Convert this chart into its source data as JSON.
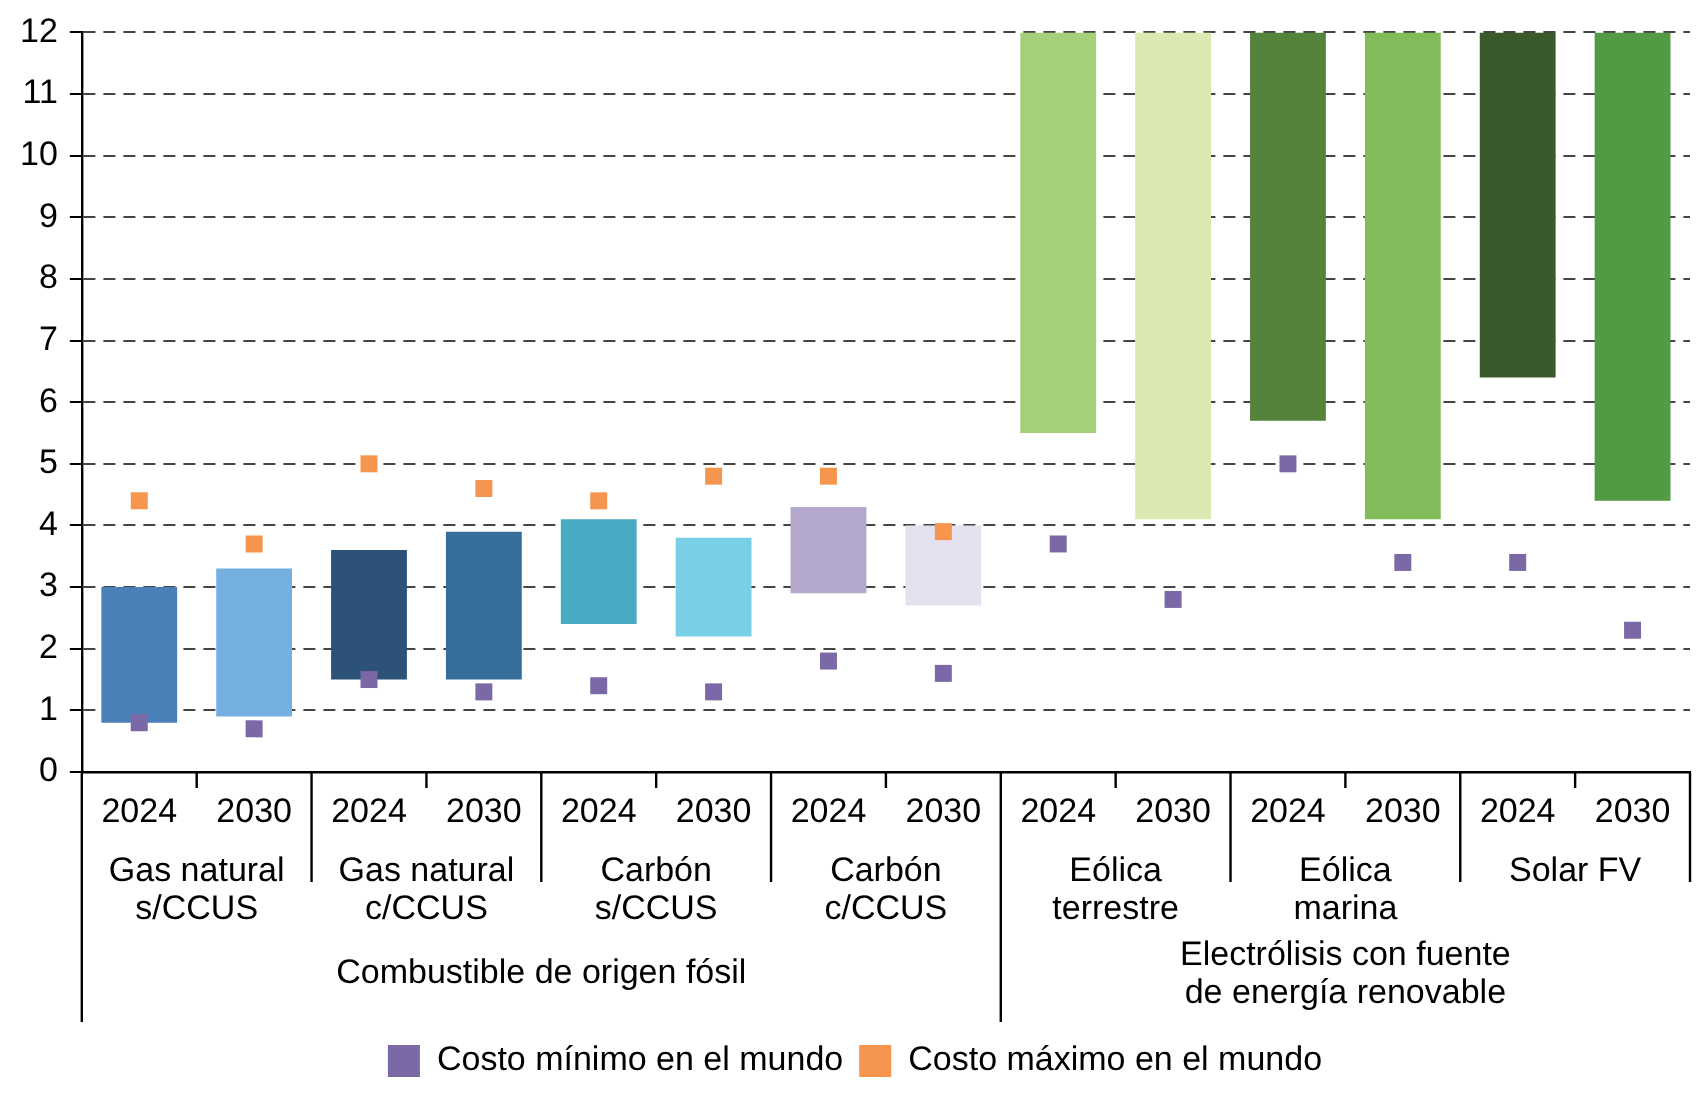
{
  "chart_data": {
    "type": "bar",
    "categories": [
      "2024",
      "2030",
      "2024",
      "2030",
      "2024",
      "2030",
      "2024",
      "2030",
      "2024",
      "2030",
      "2024",
      "2030",
      "2024",
      "2030"
    ],
    "ylim": [
      0,
      12
    ],
    "yticks": [
      0,
      1,
      2,
      3,
      4,
      5,
      6,
      7,
      8,
      9,
      10,
      11,
      12
    ],
    "grid": "y",
    "legend": "bottom",
    "series": [
      {
        "colors": [
          "#4a7fb8",
          "#74afdf",
          "#2c5278",
          "#376d99",
          "#47abc4",
          "#78cfe6",
          "#b3a8cc",
          "#e5e2f0",
          "#a5d07a",
          "#dbe9b0",
          "#54833b",
          "#82bb5a",
          "#3b5a2b",
          "#529a43"
        ],
        "base": [
          0.8,
          0.9,
          1.5,
          1.5,
          2.4,
          2.2,
          2.9,
          2.7,
          5.5,
          4.1,
          5.7,
          4.1,
          6.4,
          4.4
        ],
        "values": [
          2.2,
          2.4,
          2.1,
          2.4,
          1.7,
          1.6,
          1.4,
          1.3,
          6.5,
          7.9,
          6.3,
          7.9,
          5.6,
          7.6
        ]
      },
      {
        "type": "scatter",
        "name": "Costo mínimo en el mundo",
        "color": "#7b68a6",
        "marker": "square",
        "values": [
          0.8,
          0.7,
          1.5,
          1.3,
          1.4,
          1.3,
          1.8,
          1.6,
          3.7,
          2.8,
          5.0,
          3.4,
          3.4,
          2.3
        ]
      },
      {
        "type": "scatter",
        "name": "Costo máximo en el mundo",
        "color": "#f6954d",
        "marker": "square",
        "values": [
          4.4,
          3.7,
          5.0,
          4.6,
          4.4,
          4.8,
          4.8,
          3.9,
          null,
          null,
          null,
          null,
          null,
          null
        ]
      }
    ],
    "annotations": [
      "Gas natural\ns/CCUS",
      "Gas natural\nc/CCUS",
      "Carbón\ns/CCUS",
      "Carbón\nc/CCUS",
      "Eólica\nterrestre",
      "Eólica\nmarina",
      "Solar FV",
      "Combustible de origen fósil",
      "Electrólisis con fuente\nde energía renovable"
    ]
  }
}
